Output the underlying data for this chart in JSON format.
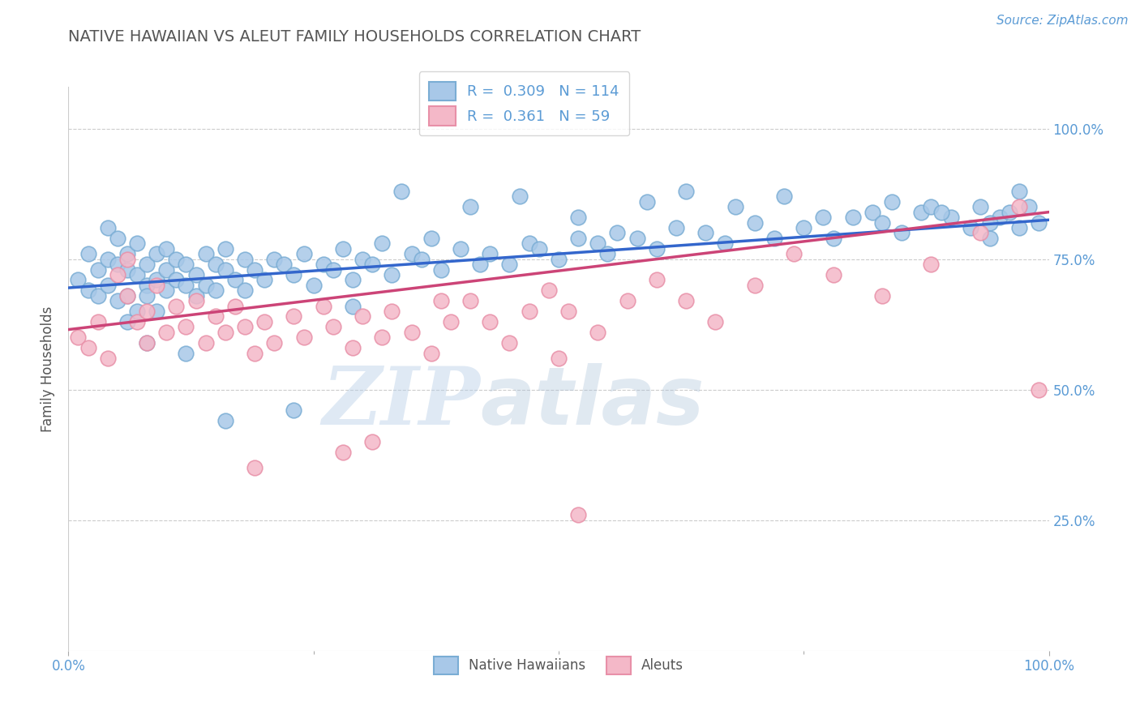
{
  "title": "NATIVE HAWAIIAN VS ALEUT FAMILY HOUSEHOLDS CORRELATION CHART",
  "source": "Source: ZipAtlas.com",
  "ylabel": "Family Households",
  "y_tick_labels_right": [
    "25.0%",
    "50.0%",
    "75.0%",
    "100.0%"
  ],
  "y_tick_positions": [
    0.25,
    0.5,
    0.75,
    1.0
  ],
  "legend_r1": "R =  0.309",
  "legend_n1": "N = 114",
  "legend_r2": "R =  0.361",
  "legend_n2": "N = 59",
  "blue_color": "#a8c8e8",
  "blue_edge_color": "#7aadd4",
  "pink_color": "#f4b8c8",
  "pink_edge_color": "#e890a8",
  "blue_line_color": "#3366cc",
  "pink_line_color": "#cc4477",
  "blue_scatter_x": [
    0.01,
    0.02,
    0.02,
    0.03,
    0.03,
    0.04,
    0.04,
    0.04,
    0.05,
    0.05,
    0.05,
    0.06,
    0.06,
    0.06,
    0.07,
    0.07,
    0.07,
    0.08,
    0.08,
    0.08,
    0.09,
    0.09,
    0.09,
    0.1,
    0.1,
    0.1,
    0.11,
    0.11,
    0.12,
    0.12,
    0.13,
    0.13,
    0.14,
    0.14,
    0.15,
    0.15,
    0.16,
    0.16,
    0.17,
    0.18,
    0.18,
    0.19,
    0.2,
    0.21,
    0.22,
    0.23,
    0.24,
    0.25,
    0.26,
    0.27,
    0.28,
    0.29,
    0.3,
    0.31,
    0.32,
    0.33,
    0.35,
    0.36,
    0.37,
    0.38,
    0.4,
    0.42,
    0.43,
    0.45,
    0.47,
    0.48,
    0.5,
    0.52,
    0.54,
    0.55,
    0.56,
    0.58,
    0.6,
    0.62,
    0.65,
    0.67,
    0.7,
    0.72,
    0.75,
    0.78,
    0.8,
    0.82,
    0.83,
    0.85,
    0.87,
    0.88,
    0.9,
    0.92,
    0.93,
    0.94,
    0.95,
    0.96,
    0.97,
    0.98,
    0.99,
    0.34,
    0.41,
    0.46,
    0.52,
    0.59,
    0.63,
    0.68,
    0.73,
    0.77,
    0.84,
    0.89,
    0.94,
    0.97,
    0.16,
    0.23,
    0.29,
    0.08,
    0.06,
    0.12
  ],
  "blue_scatter_y": [
    0.71,
    0.69,
    0.76,
    0.73,
    0.68,
    0.81,
    0.75,
    0.7,
    0.74,
    0.67,
    0.79,
    0.73,
    0.68,
    0.76,
    0.72,
    0.65,
    0.78,
    0.7,
    0.74,
    0.68,
    0.71,
    0.76,
    0.65,
    0.73,
    0.69,
    0.77,
    0.71,
    0.75,
    0.7,
    0.74,
    0.68,
    0.72,
    0.76,
    0.7,
    0.74,
    0.69,
    0.73,
    0.77,
    0.71,
    0.75,
    0.69,
    0.73,
    0.71,
    0.75,
    0.74,
    0.72,
    0.76,
    0.7,
    0.74,
    0.73,
    0.77,
    0.71,
    0.75,
    0.74,
    0.78,
    0.72,
    0.76,
    0.75,
    0.79,
    0.73,
    0.77,
    0.74,
    0.76,
    0.74,
    0.78,
    0.77,
    0.75,
    0.79,
    0.78,
    0.76,
    0.8,
    0.79,
    0.77,
    0.81,
    0.8,
    0.78,
    0.82,
    0.79,
    0.81,
    0.79,
    0.83,
    0.84,
    0.82,
    0.8,
    0.84,
    0.85,
    0.83,
    0.81,
    0.85,
    0.79,
    0.83,
    0.84,
    0.81,
    0.85,
    0.82,
    0.88,
    0.85,
    0.87,
    0.83,
    0.86,
    0.88,
    0.85,
    0.87,
    0.83,
    0.86,
    0.84,
    0.82,
    0.88,
    0.44,
    0.46,
    0.66,
    0.59,
    0.63,
    0.57
  ],
  "pink_scatter_x": [
    0.01,
    0.02,
    0.03,
    0.04,
    0.05,
    0.06,
    0.06,
    0.07,
    0.08,
    0.08,
    0.09,
    0.1,
    0.11,
    0.12,
    0.13,
    0.14,
    0.15,
    0.16,
    0.17,
    0.18,
    0.19,
    0.2,
    0.21,
    0.23,
    0.24,
    0.26,
    0.27,
    0.29,
    0.3,
    0.32,
    0.33,
    0.35,
    0.37,
    0.39,
    0.41,
    0.43,
    0.45,
    0.47,
    0.49,
    0.51,
    0.54,
    0.57,
    0.6,
    0.63,
    0.66,
    0.7,
    0.74,
    0.78,
    0.83,
    0.88,
    0.93,
    0.97,
    0.99,
    0.5,
    0.38,
    0.28,
    0.19,
    0.31,
    0.52
  ],
  "pink_scatter_y": [
    0.6,
    0.58,
    0.63,
    0.56,
    0.72,
    0.68,
    0.75,
    0.63,
    0.59,
    0.65,
    0.7,
    0.61,
    0.66,
    0.62,
    0.67,
    0.59,
    0.64,
    0.61,
    0.66,
    0.62,
    0.57,
    0.63,
    0.59,
    0.64,
    0.6,
    0.66,
    0.62,
    0.58,
    0.64,
    0.6,
    0.65,
    0.61,
    0.57,
    0.63,
    0.67,
    0.63,
    0.59,
    0.65,
    0.69,
    0.65,
    0.61,
    0.67,
    0.71,
    0.67,
    0.63,
    0.7,
    0.76,
    0.72,
    0.68,
    0.74,
    0.8,
    0.85,
    0.5,
    0.56,
    0.67,
    0.38,
    0.35,
    0.4,
    0.26
  ],
  "blue_trend_x": [
    0.0,
    1.0
  ],
  "blue_trend_y": [
    0.695,
    0.825
  ],
  "pink_trend_x": [
    0.0,
    1.0
  ],
  "pink_trend_y": [
    0.615,
    0.84
  ],
  "watermark_zip": "ZIP",
  "watermark_atlas": "atlas",
  "bg_color": "#ffffff",
  "grid_color": "#cccccc",
  "title_color": "#555555",
  "right_label_color": "#5b9bd5",
  "legend_text_color": "#5b9bd5",
  "bottom_legend_color": "#555555",
  "ylim": [
    0.0,
    1.08
  ],
  "xlim": [
    0.0,
    1.0
  ]
}
